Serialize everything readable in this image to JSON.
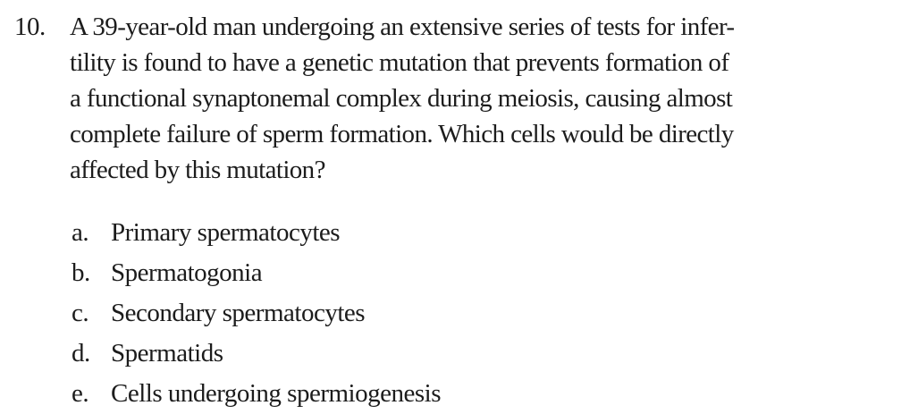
{
  "question": {
    "number": "10.",
    "stem_lines": [
      "A 39-year-old man undergoing an extensive series of tests for infer-",
      "tility is found to have a genetic mutation that prevents formation of",
      "a functional synaptonemal complex during meiosis, causing almost",
      "complete failure of sperm formation. Which cells would be directly",
      "affected by this mutation?"
    ],
    "choices": [
      {
        "letter": "a.",
        "text": "Primary spermatocytes"
      },
      {
        "letter": "b.",
        "text": "Spermatogonia"
      },
      {
        "letter": "c.",
        "text": "Secondary spermatocytes"
      },
      {
        "letter": "d.",
        "text": "Spermatids"
      },
      {
        "letter": "e.",
        "text": "Cells undergoing spermiogenesis"
      }
    ]
  }
}
